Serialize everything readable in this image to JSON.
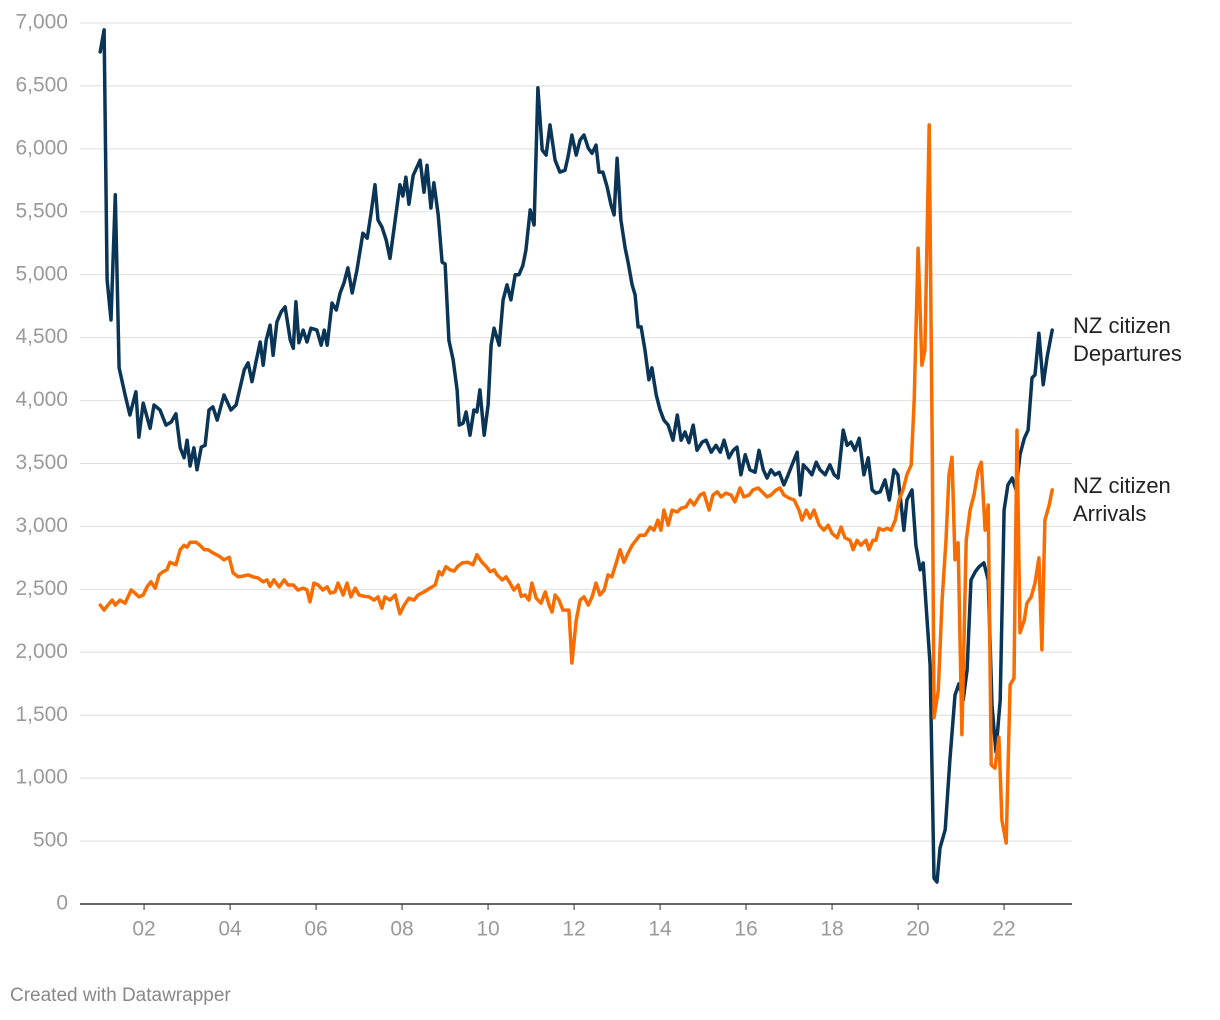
{
  "chart_data": {
    "type": "line",
    "credit": "Created with Datawrapper",
    "xlim": [
      2000.51,
      2023.58
    ],
    "ylim": [
      0,
      7000
    ],
    "xticks": [
      {
        "value": 2002,
        "label": "02"
      },
      {
        "value": 2004,
        "label": "04"
      },
      {
        "value": 2006,
        "label": "06"
      },
      {
        "value": 2008,
        "label": "08"
      },
      {
        "value": 2010,
        "label": "10"
      },
      {
        "value": 2012,
        "label": "12"
      },
      {
        "value": 2014,
        "label": "14"
      },
      {
        "value": 2016,
        "label": "16"
      },
      {
        "value": 2018,
        "label": "18"
      },
      {
        "value": 2020,
        "label": "20"
      },
      {
        "value": 2022,
        "label": "22"
      }
    ],
    "yticks": [
      0,
      500,
      {
        "value": 1000,
        "label": "1,000"
      },
      {
        "value": 1500,
        "label": "1,500"
      },
      {
        "value": 2000,
        "label": "2,000"
      },
      {
        "value": 2500,
        "label": "2,500"
      },
      {
        "value": 3000,
        "label": "3,000"
      },
      {
        "value": 3500,
        "label": "3,500"
      },
      {
        "value": 4000,
        "label": "4,000"
      },
      {
        "value": 4500,
        "label": "4,500"
      },
      {
        "value": 5000,
        "label": "5,000"
      },
      {
        "value": 5500,
        "label": "5,500"
      },
      {
        "value": 6000,
        "label": "6,000"
      },
      {
        "value": 6500,
        "label": "6,500"
      },
      {
        "value": 7000,
        "label": "7,000"
      }
    ],
    "grid": true,
    "series": [
      {
        "name": "NZ citizen Departures",
        "color": "#0b3556",
        "x": [
          2000.98,
          2001.07,
          2001.14,
          2001.23,
          2001.33,
          2001.42,
          2001.56,
          2001.67,
          2001.81,
          2001.88,
          2001.98,
          2002.14,
          2002.23,
          2002.37,
          2002.51,
          2002.63,
          2002.74,
          2002.84,
          2002.93,
          2003.0,
          2003.07,
          2003.16,
          2003.23,
          2003.33,
          2003.42,
          2003.51,
          2003.6,
          2003.7,
          2003.86,
          2004.02,
          2004.14,
          2004.23,
          2004.33,
          2004.42,
          2004.51,
          2004.6,
          2004.7,
          2004.77,
          2004.84,
          2004.93,
          2005.0,
          2005.09,
          2005.19,
          2005.28,
          2005.4,
          2005.47,
          2005.53,
          2005.6,
          2005.7,
          2005.79,
          2005.88,
          2006.02,
          2006.12,
          2006.19,
          2006.26,
          2006.37,
          2006.47,
          2006.56,
          2006.65,
          2006.74,
          2006.84,
          2006.95,
          2007.09,
          2007.19,
          2007.28,
          2007.37,
          2007.44,
          2007.53,
          2007.63,
          2007.72,
          2007.84,
          2007.95,
          2008.02,
          2008.09,
          2008.16,
          2008.26,
          2008.42,
          2008.51,
          2008.58,
          2008.67,
          2008.74,
          2008.84,
          2008.93,
          2009.0,
          2009.09,
          2009.19,
          2009.28,
          2009.33,
          2009.42,
          2009.49,
          2009.58,
          2009.67,
          2009.74,
          2009.81,
          2009.91,
          2010.0,
          2010.07,
          2010.14,
          2010.26,
          2010.35,
          2010.44,
          2010.53,
          2010.63,
          2010.72,
          2010.81,
          2010.88,
          2010.98,
          2011.07,
          2011.16,
          2011.26,
          2011.35,
          2011.44,
          2011.56,
          2011.67,
          2011.79,
          2011.86,
          2011.95,
          2012.05,
          2012.14,
          2012.23,
          2012.33,
          2012.42,
          2012.51,
          2012.58,
          2012.67,
          2012.77,
          2012.86,
          2012.93,
          2013.0,
          2013.09,
          2013.19,
          2013.26,
          2013.35,
          2013.42,
          2013.49,
          2013.56,
          2013.65,
          2013.74,
          2013.81,
          2013.91,
          2014.0,
          2014.09,
          2014.19,
          2014.3,
          2014.4,
          2014.49,
          2014.58,
          2014.67,
          2014.77,
          2014.86,
          2014.98,
          2015.07,
          2015.19,
          2015.3,
          2015.4,
          2015.49,
          2015.6,
          2015.7,
          2015.79,
          2015.88,
          2015.98,
          2016.09,
          2016.21,
          2016.3,
          2016.4,
          2016.49,
          2016.58,
          2016.67,
          2016.77,
          2016.88,
          2016.98,
          2017.07,
          2017.19,
          2017.26,
          2017.33,
          2017.44,
          2017.53,
          2017.63,
          2017.72,
          2017.84,
          2017.95,
          2018.05,
          2018.14,
          2018.26,
          2018.35,
          2018.44,
          2018.53,
          2018.63,
          2018.74,
          2018.84,
          2018.93,
          2019.02,
          2019.12,
          2019.23,
          2019.33,
          2019.44,
          2019.53,
          2019.67,
          2019.74,
          2019.86,
          2019.95,
          2020.05,
          2020.12,
          2020.21,
          2020.28,
          2020.37,
          2020.44,
          2020.51,
          2020.63,
          2020.74,
          2020.86,
          2020.95,
          2021.05,
          2021.14,
          2021.23,
          2021.33,
          2021.42,
          2021.53,
          2021.63,
          2021.72,
          2021.81,
          2021.91,
          2022.0,
          2022.09,
          2022.19,
          2022.28,
          2022.37,
          2022.47,
          2022.56,
          2022.65,
          2022.72,
          2022.81,
          2022.91,
          2023.0,
          2023.12
        ],
        "values": [
          6770,
          6945,
          4960,
          4640,
          5635,
          4260,
          4045,
          3885,
          4070,
          3710,
          3980,
          3780,
          3965,
          3925,
          3805,
          3830,
          3895,
          3625,
          3545,
          3685,
          3480,
          3625,
          3450,
          3630,
          3645,
          3925,
          3950,
          3845,
          4045,
          3925,
          3965,
          4100,
          4245,
          4300,
          4150,
          4305,
          4465,
          4280,
          4480,
          4600,
          4360,
          4625,
          4705,
          4745,
          4480,
          4415,
          4785,
          4460,
          4560,
          4465,
          4575,
          4560,
          4440,
          4560,
          4440,
          4775,
          4720,
          4855,
          4935,
          5055,
          4855,
          5035,
          5330,
          5290,
          5490,
          5715,
          5435,
          5380,
          5275,
          5130,
          5435,
          5715,
          5625,
          5775,
          5560,
          5790,
          5910,
          5655,
          5870,
          5530,
          5730,
          5475,
          5100,
          5085,
          4480,
          4320,
          4085,
          3805,
          3820,
          3910,
          3725,
          3925,
          3910,
          4085,
          3725,
          3965,
          4440,
          4575,
          4440,
          4800,
          4920,
          4800,
          5000,
          5000,
          5075,
          5195,
          5515,
          5395,
          6485,
          5990,
          5950,
          6190,
          5910,
          5815,
          5830,
          5935,
          6110,
          5950,
          6070,
          6110,
          6005,
          5965,
          6030,
          5815,
          5815,
          5695,
          5555,
          5475,
          5925,
          5435,
          5210,
          5095,
          4920,
          4840,
          4585,
          4585,
          4400,
          4165,
          4260,
          4045,
          3925,
          3845,
          3805,
          3685,
          3885,
          3685,
          3750,
          3665,
          3805,
          3605,
          3670,
          3685,
          3590,
          3645,
          3590,
          3685,
          3545,
          3605,
          3630,
          3410,
          3570,
          3450,
          3430,
          3605,
          3450,
          3385,
          3450,
          3410,
          3430,
          3330,
          3410,
          3490,
          3590,
          3250,
          3490,
          3450,
          3410,
          3510,
          3450,
          3410,
          3490,
          3410,
          3385,
          3765,
          3645,
          3670,
          3605,
          3700,
          3410,
          3545,
          3290,
          3265,
          3275,
          3370,
          3210,
          3450,
          3410,
          2970,
          3210,
          3290,
          2850,
          2655,
          2710,
          2255,
          1900,
          205,
          175,
          445,
          590,
          1145,
          1660,
          1750,
          1620,
          1860,
          2575,
          2640,
          2680,
          2710,
          2575,
          1580,
          1210,
          1620,
          3130,
          3330,
          3385,
          3290,
          3570,
          3700,
          3765,
          4180,
          4205,
          4535,
          4125,
          4345,
          4560
        ]
      },
      {
        "name": "NZ citizen Arrivals",
        "color": "#f86c00",
        "x": [
          2000.98,
          2001.07,
          2001.16,
          2001.26,
          2001.33,
          2001.44,
          2001.56,
          2001.7,
          2001.79,
          2001.88,
          2001.98,
          2002.07,
          2002.16,
          2002.26,
          2002.35,
          2002.44,
          2002.53,
          2002.6,
          2002.74,
          2002.84,
          2002.93,
          2003.0,
          2003.07,
          2003.21,
          2003.3,
          2003.4,
          2003.49,
          2003.6,
          2003.72,
          2003.86,
          2003.98,
          2004.07,
          2004.19,
          2004.3,
          2004.42,
          2004.53,
          2004.65,
          2004.77,
          2004.86,
          2004.93,
          2005.02,
          2005.14,
          2005.26,
          2005.35,
          2005.47,
          2005.58,
          2005.7,
          2005.79,
          2005.86,
          2005.95,
          2006.05,
          2006.16,
          2006.26,
          2006.33,
          2006.44,
          2006.51,
          2006.63,
          2006.72,
          2006.81,
          2006.91,
          2007.0,
          2007.12,
          2007.23,
          2007.35,
          2007.44,
          2007.53,
          2007.6,
          2007.72,
          2007.84,
          2007.95,
          2008.05,
          2008.16,
          2008.28,
          2008.37,
          2008.51,
          2008.65,
          2008.77,
          2008.86,
          2008.93,
          2009.02,
          2009.12,
          2009.21,
          2009.3,
          2009.4,
          2009.53,
          2009.65,
          2009.74,
          2009.86,
          2009.95,
          2010.05,
          2010.14,
          2010.21,
          2010.33,
          2010.42,
          2010.51,
          2010.6,
          2010.7,
          2010.77,
          2010.86,
          2010.95,
          2011.02,
          2011.12,
          2011.23,
          2011.33,
          2011.42,
          2011.49,
          2011.56,
          2011.65,
          2011.74,
          2011.88,
          2011.95,
          2012.05,
          2012.14,
          2012.23,
          2012.33,
          2012.42,
          2012.51,
          2012.6,
          2012.7,
          2012.79,
          2012.88,
          2012.98,
          2013.07,
          2013.16,
          2013.26,
          2013.35,
          2013.44,
          2013.53,
          2013.65,
          2013.77,
          2013.86,
          2013.95,
          2014.02,
          2014.09,
          2014.19,
          2014.28,
          2014.4,
          2014.49,
          2014.6,
          2014.7,
          2014.79,
          2014.93,
          2015.02,
          2015.14,
          2015.23,
          2015.33,
          2015.42,
          2015.53,
          2015.65,
          2015.74,
          2015.86,
          2015.95,
          2016.07,
          2016.16,
          2016.28,
          2016.37,
          2016.49,
          2016.58,
          2016.7,
          2016.79,
          2016.88,
          2017.0,
          2017.12,
          2017.23,
          2017.3,
          2017.4,
          2017.49,
          2017.58,
          2017.7,
          2017.81,
          2017.91,
          2018.0,
          2018.12,
          2018.21,
          2018.3,
          2018.42,
          2018.49,
          2018.58,
          2018.67,
          2018.79,
          2018.86,
          2018.95,
          2019.02,
          2019.09,
          2019.19,
          2019.28,
          2019.37,
          2019.47,
          2019.56,
          2019.65,
          2019.74,
          2019.84,
          2019.91,
          2020.0,
          2020.09,
          2020.16,
          2020.26,
          2020.33,
          2020.37,
          2020.47,
          2020.56,
          2020.65,
          2020.72,
          2020.79,
          2020.86,
          2020.93,
          2021.02,
          2021.12,
          2021.21,
          2021.3,
          2021.4,
          2021.47,
          2021.56,
          2021.63,
          2021.7,
          2021.79,
          2021.88,
          2021.95,
          2022.05,
          2022.14,
          2022.23,
          2022.3,
          2022.37,
          2022.47,
          2022.53,
          2022.63,
          2022.72,
          2022.81,
          2022.88,
          2022.95,
          2023.05,
          2023.12
        ],
        "values": [
          2375,
          2335,
          2375,
          2415,
          2375,
          2415,
          2390,
          2495,
          2470,
          2440,
          2455,
          2520,
          2560,
          2510,
          2615,
          2640,
          2655,
          2715,
          2695,
          2815,
          2850,
          2835,
          2875,
          2875,
          2850,
          2815,
          2815,
          2790,
          2770,
          2735,
          2755,
          2630,
          2600,
          2605,
          2615,
          2600,
          2590,
          2560,
          2575,
          2525,
          2575,
          2520,
          2575,
          2535,
          2535,
          2495,
          2510,
          2495,
          2400,
          2550,
          2535,
          2495,
          2520,
          2470,
          2480,
          2550,
          2455,
          2550,
          2440,
          2510,
          2455,
          2445,
          2440,
          2415,
          2440,
          2350,
          2440,
          2415,
          2455,
          2305,
          2375,
          2430,
          2415,
          2455,
          2480,
          2510,
          2535,
          2640,
          2615,
          2680,
          2655,
          2645,
          2685,
          2710,
          2715,
          2695,
          2775,
          2715,
          2685,
          2640,
          2655,
          2615,
          2575,
          2600,
          2550,
          2495,
          2535,
          2445,
          2455,
          2415,
          2550,
          2430,
          2390,
          2480,
          2375,
          2320,
          2455,
          2415,
          2335,
          2335,
          1915,
          2255,
          2415,
          2440,
          2375,
          2440,
          2550,
          2455,
          2495,
          2615,
          2600,
          2710,
          2815,
          2715,
          2790,
          2850,
          2890,
          2930,
          2930,
          2995,
          2970,
          3050,
          2970,
          3130,
          3010,
          3130,
          3115,
          3145,
          3155,
          3210,
          3170,
          3250,
          3265,
          3130,
          3250,
          3275,
          3235,
          3265,
          3250,
          3195,
          3305,
          3235,
          3250,
          3290,
          3305,
          3275,
          3235,
          3250,
          3290,
          3305,
          3250,
          3225,
          3210,
          3130,
          3050,
          3130,
          3065,
          3130,
          3010,
          2970,
          3010,
          2945,
          2910,
          2995,
          2910,
          2890,
          2815,
          2890,
          2850,
          2890,
          2815,
          2890,
          2890,
          2985,
          2970,
          2985,
          2970,
          3050,
          3210,
          3290,
          3410,
          3490,
          4005,
          5210,
          4280,
          4400,
          6190,
          3570,
          1480,
          1700,
          2415,
          2890,
          3410,
          3550,
          2735,
          2870,
          1345,
          2890,
          3130,
          3250,
          3450,
          3510,
          2970,
          3170,
          1105,
          1080,
          1325,
          665,
          485,
          1740,
          1795,
          3765,
          2155,
          2255,
          2390,
          2440,
          2550,
          2750,
          2020,
          3050,
          3170,
          3290
        ]
      }
    ]
  }
}
